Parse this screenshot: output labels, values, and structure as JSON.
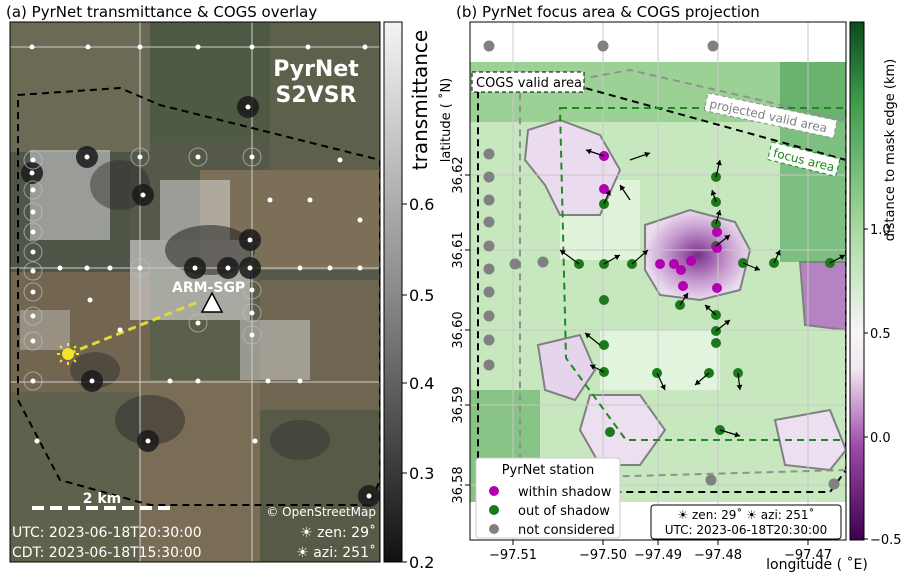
{
  "panel_a": {
    "title": "(a) PyrNet transmittance & COGS overlay",
    "brand_line1": "PyrNet",
    "brand_line2": "S2VSR",
    "site_label": "ARM-SGP",
    "scalebar_label": "2 km",
    "copyright": "© OpenStreetMap",
    "utc_line": "UTC: 2023-06-18T20:30:00",
    "cdt_line": "CDT: 2023-06-18T15:30:00",
    "zen_line": "☀ zen:  29˚",
    "azi_line": "☀ azi: 251˚"
  },
  "colorbar_a": {
    "label": "transmittance",
    "ticks": [
      "0.6",
      "0.5",
      "0.4",
      "0.3",
      "0.2"
    ]
  },
  "panel_b": {
    "title": "(b) PyrNet focus area & COGS projection",
    "ylabel": "latitude ( ˚N)",
    "xlabel": "longitude ( ˚E)",
    "yticks": [
      "36.62",
      "36.61",
      "36.60",
      "36.59",
      "36.58"
    ],
    "xticks": [
      "−97.51",
      "−97.50",
      "−97.49",
      "−97.48",
      "−97.47"
    ],
    "label_cogs_valid": "COGS valid area",
    "label_projected": "projected valid area",
    "label_focus": "focus area",
    "legend_title": "PyrNet station",
    "legend_within": "within shadow",
    "legend_out": "out of shadow",
    "legend_not": "not considered",
    "info_line1": "☀ zen:  29˚  ☀ azi: 251˚",
    "info_line2": "UTC: 2023-06-18T20:30:00"
  },
  "colorbar_b": {
    "label": "distance to mask edge (km)",
    "ticks": [
      "1.0",
      "0.5",
      "0.0",
      "−0.5"
    ]
  },
  "colors": {
    "within": "#b000b0",
    "out": "#1a7a1a",
    "not": "#808080",
    "focus": "#1e8a1e",
    "valid": "#000000",
    "projected": "#909090"
  }
}
